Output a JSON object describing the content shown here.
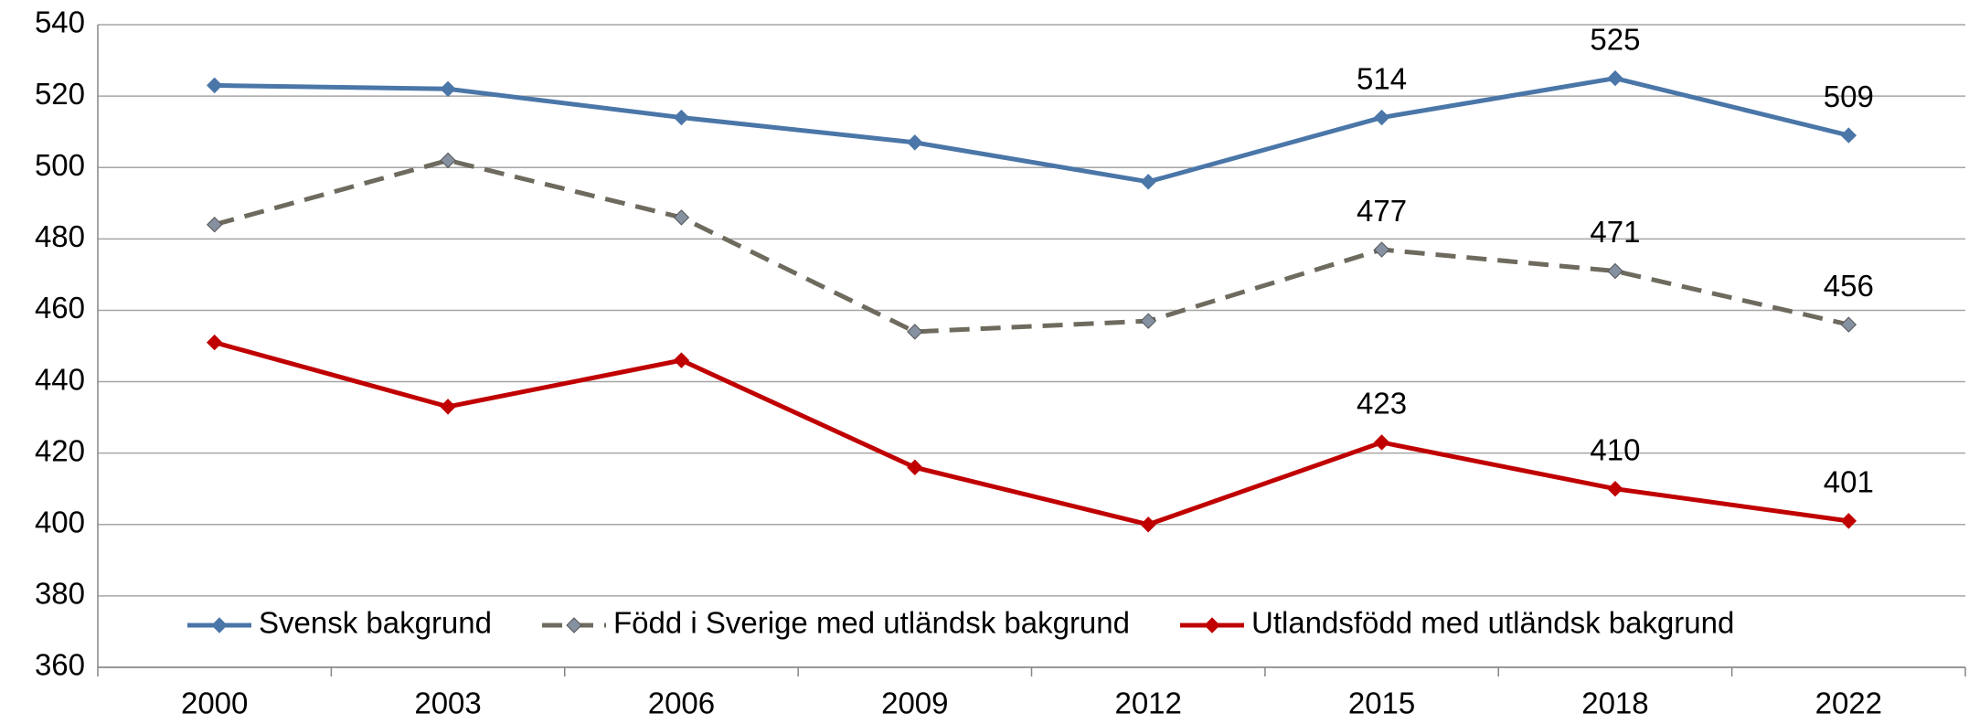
{
  "chart_data": {
    "type": "line",
    "categories": [
      "2000",
      "2003",
      "2006",
      "2009",
      "2012",
      "2015",
      "2018",
      "2022"
    ],
    "series": [
      {
        "name": "Svensk bakgrund",
        "color": "#4a76a8",
        "marker_color": "#4a76a8",
        "dash": false,
        "values": [
          523,
          522,
          514,
          507,
          496,
          514,
          525,
          509
        ],
        "value_labels": [
          null,
          null,
          null,
          null,
          null,
          514,
          525,
          509
        ]
      },
      {
        "name": "Född i Sverige med utländsk bakgrund",
        "color": "#6e6a5e",
        "marker_color": "#8590a0",
        "dash": true,
        "values": [
          484,
          502,
          486,
          454,
          457,
          477,
          471,
          456
        ],
        "value_labels": [
          null,
          null,
          null,
          null,
          null,
          477,
          471,
          456
        ]
      },
      {
        "name": "Utlandsfödd med utländsk bakgrund",
        "color": "#c00000",
        "marker_color": "#c00000",
        "dash": false,
        "values": [
          451,
          433,
          446,
          416,
          400,
          423,
          410,
          401
        ],
        "value_labels": [
          null,
          null,
          null,
          null,
          null,
          423,
          410,
          401
        ]
      }
    ],
    "ylim": [
      360,
      540
    ],
    "yticks": [
      360,
      380,
      400,
      420,
      440,
      460,
      480,
      500,
      520,
      540
    ],
    "grid": true,
    "legend": "bottom"
  }
}
